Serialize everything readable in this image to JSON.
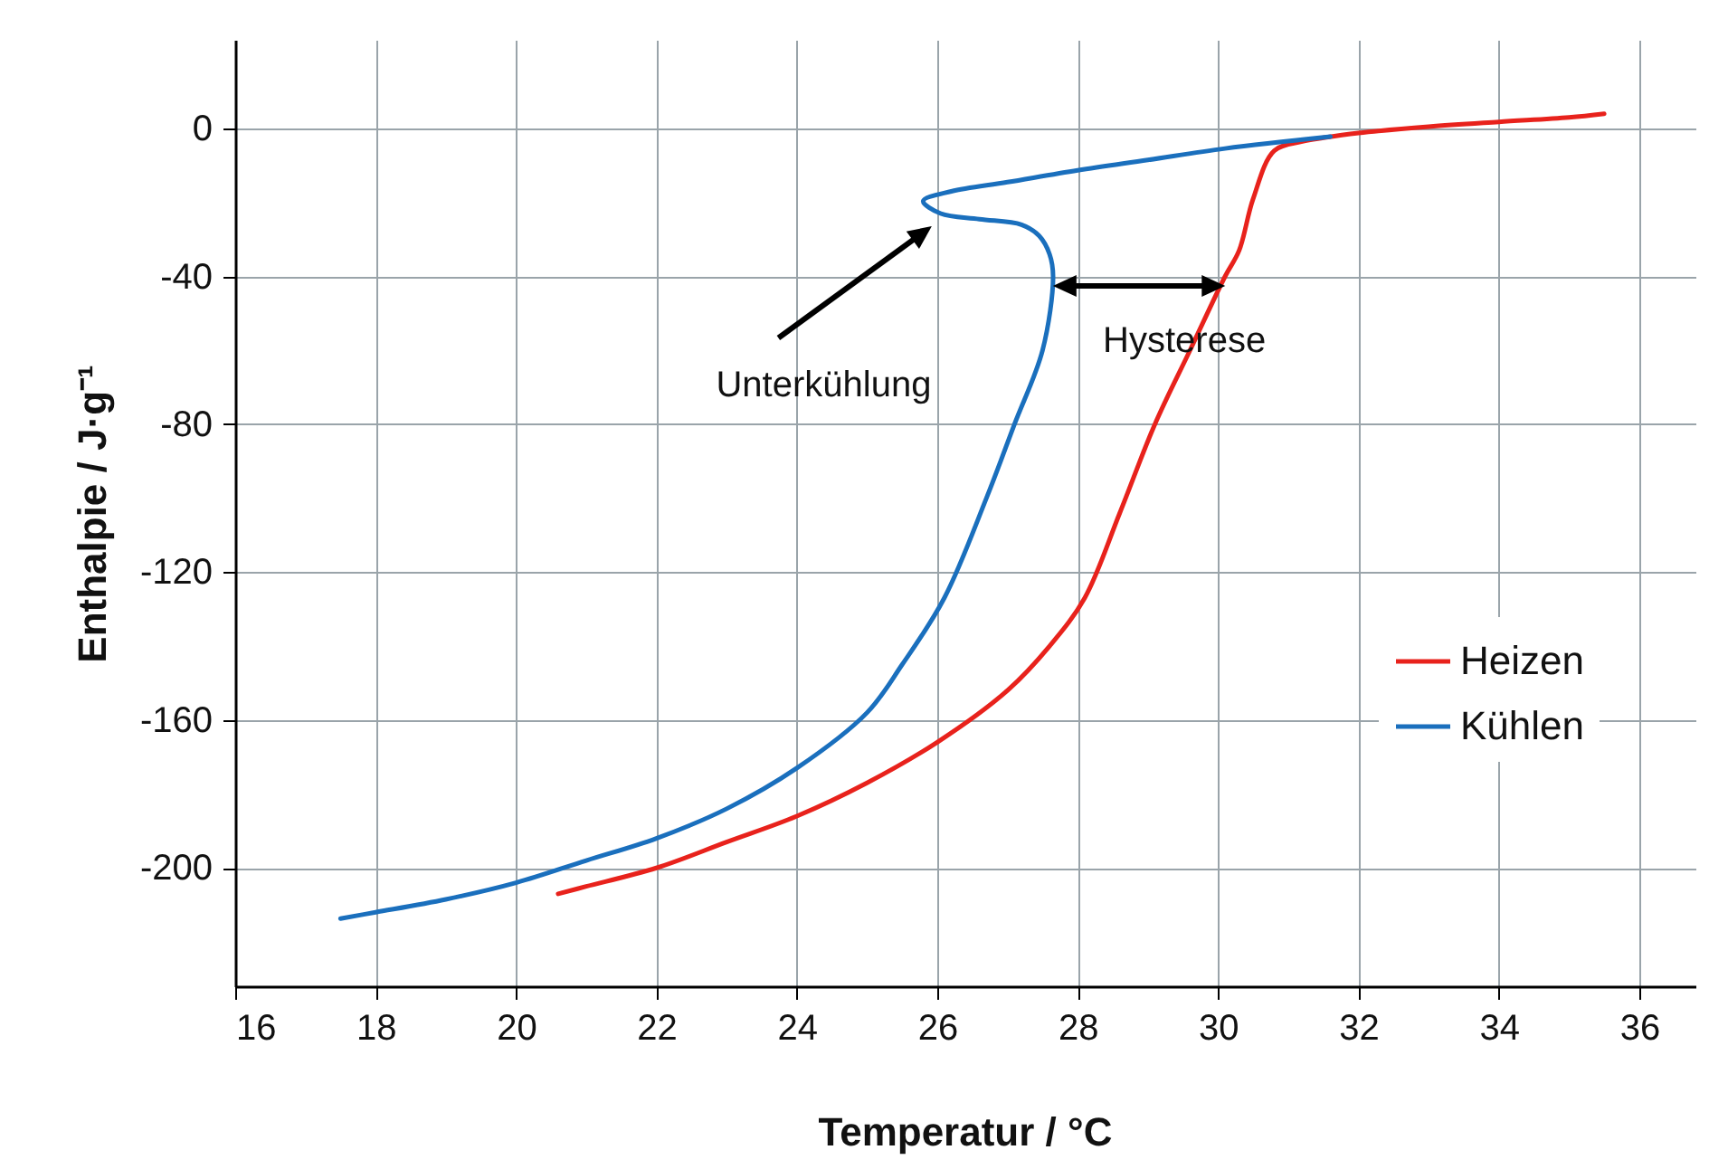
{
  "chart_data": {
    "type": "line",
    "xlabel": "Temperatur / °C",
    "ylabel": "Enthalpie / J·g⁻¹",
    "xlim": [
      16,
      36.8
    ],
    "xticks": [
      16,
      18,
      20,
      22,
      24,
      26,
      28,
      30,
      32,
      34,
      36
    ],
    "ylim": [
      -232,
      24
    ],
    "yticks": [
      -200,
      -160,
      -120,
      -80,
      -40,
      0
    ],
    "grid": true,
    "legend": "right",
    "line_style": "solid",
    "series": [
      {
        "name": "Heizen",
        "color": "#e8221c",
        "x": [
          20.6,
          21,
          22,
          23,
          24,
          25,
          26,
          27,
          27.6,
          28.1,
          28.6,
          29.1,
          29.6,
          30.1,
          30.3,
          30.5,
          30.8,
          31.2,
          31.5,
          32,
          33,
          34,
          35,
          35.5
        ],
        "values": [
          -207,
          -205,
          -200,
          -193,
          -186,
          -177,
          -166,
          -152,
          -140,
          -127,
          -104,
          -80,
          -60,
          -40,
          -33,
          -19,
          -6,
          -3.5,
          -2.5,
          -1.2,
          0.5,
          1.8,
          3,
          4
        ]
      },
      {
        "name": "Kühlen",
        "color": "#1a6fbd",
        "x": [
          31.6,
          30.1,
          29,
          28,
          27,
          26.2,
          25.8,
          26.05,
          26.6,
          27.2,
          27.45,
          27.6,
          27.65,
          27.5,
          27.1,
          26.7,
          26.1,
          25.5,
          25,
          24,
          23,
          22,
          21,
          20,
          19,
          18,
          17.5
        ],
        "values": [
          -2.2,
          -5.4,
          -8.5,
          -11.3,
          -14.5,
          -17,
          -19.6,
          -23,
          -24.5,
          -26,
          -29,
          -34,
          -40,
          -60,
          -80,
          -100,
          -127,
          -145,
          -158,
          -173,
          -184,
          -192,
          -198,
          -204,
          -208.5,
          -212,
          -213.7
        ]
      }
    ],
    "annotations": [
      "Unterkühlung",
      "Hysterese"
    ]
  }
}
